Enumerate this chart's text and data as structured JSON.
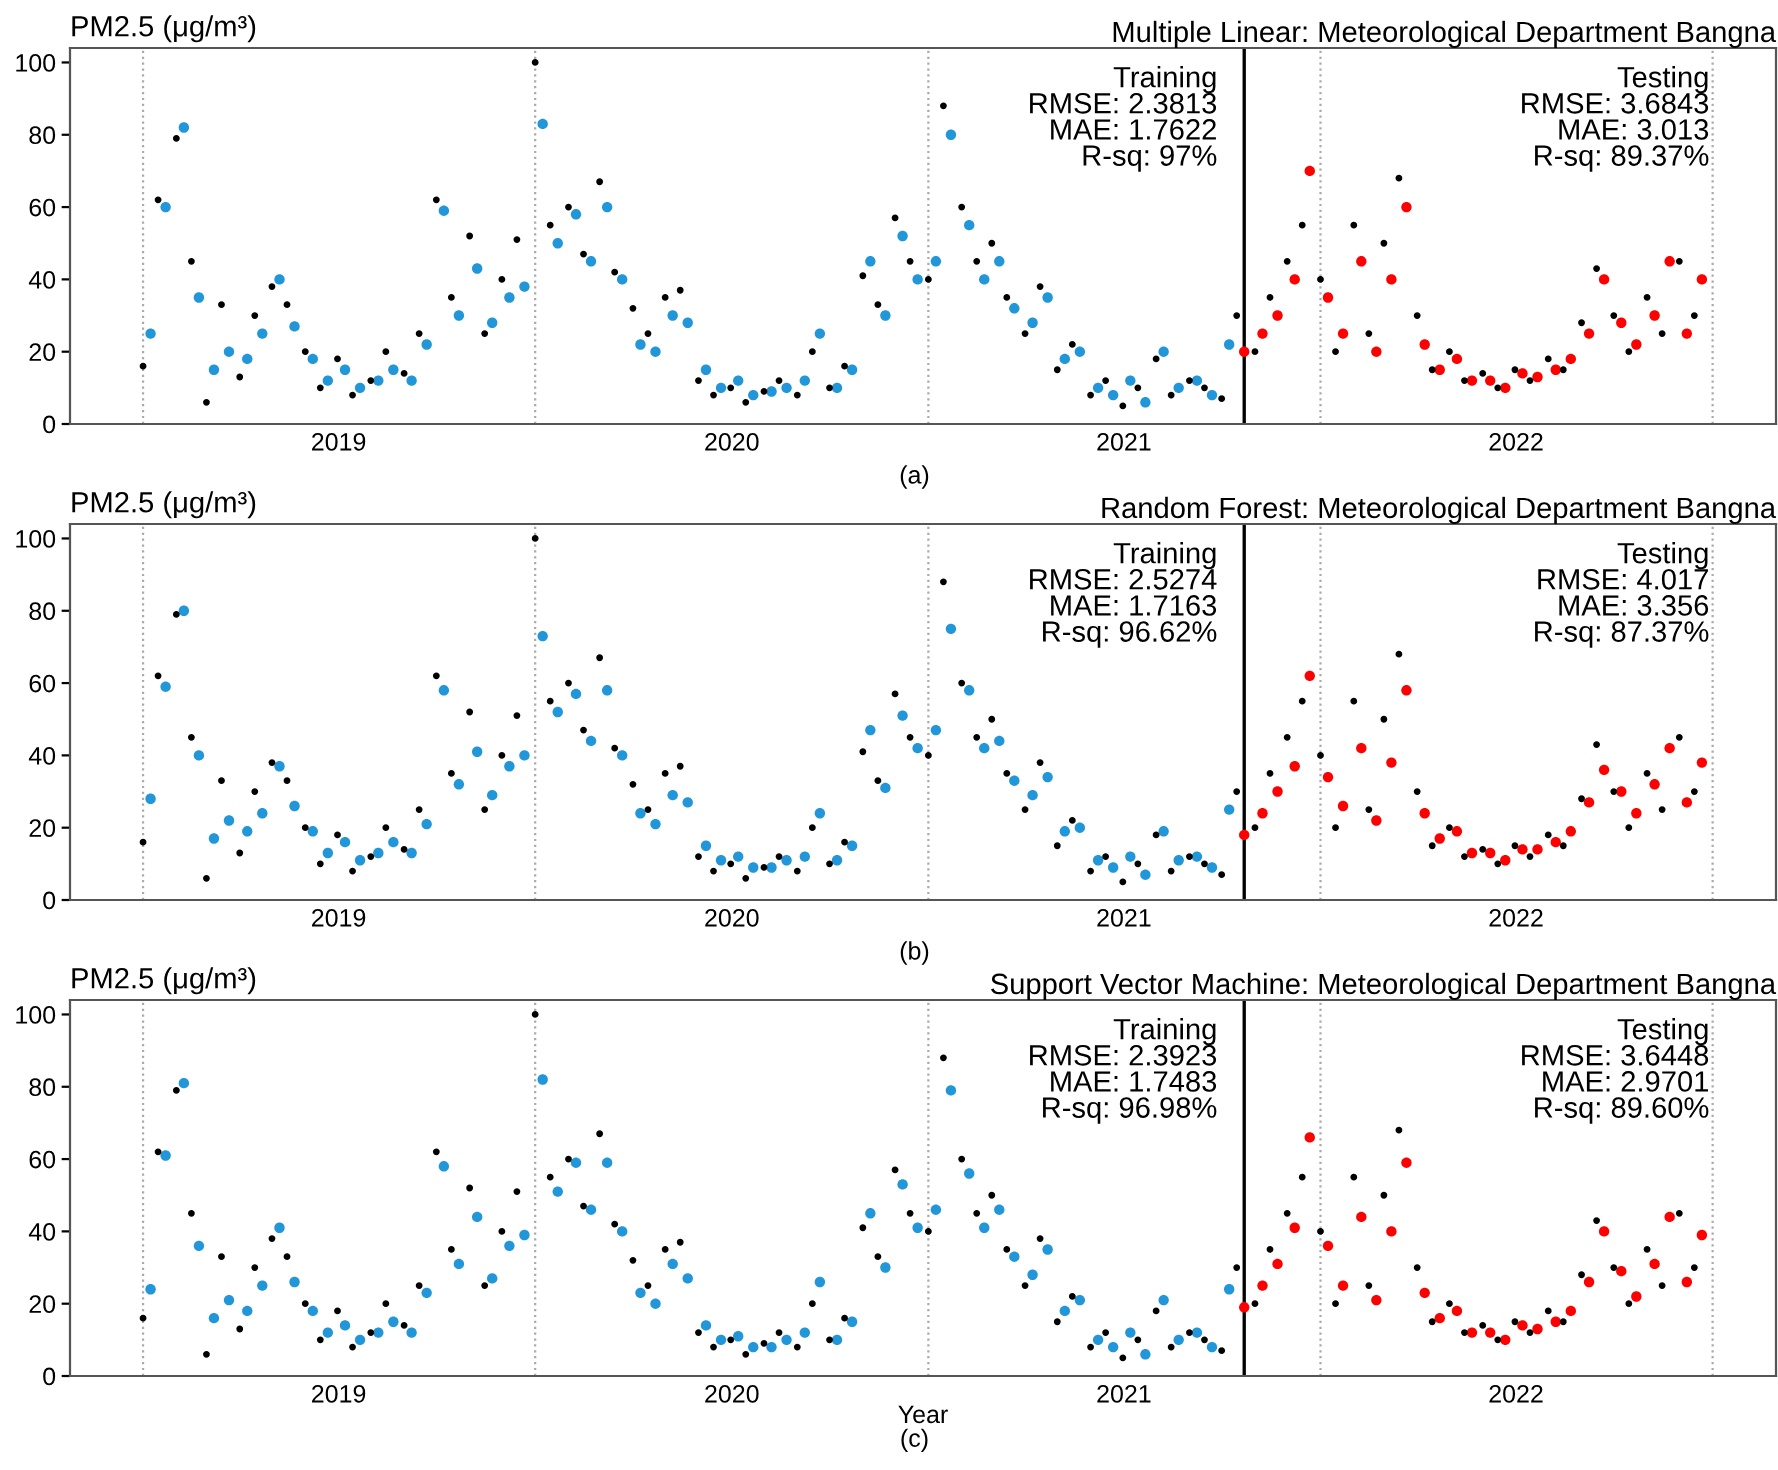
{
  "chart_data": [
    {
      "type": "scatter",
      "title": "Multiple Linear: Meteorological Department Bangna",
      "ylabel": "PM2.5 (μg/m³)",
      "marker": "circle",
      "xlim": [
        "2018-10-25",
        "2023-03-01"
      ],
      "ylim": [
        0,
        104
      ],
      "yticks": [
        0,
        20,
        40,
        60,
        80,
        100
      ],
      "xticks": [
        {
          "value": "2019-07-02",
          "label": "2019"
        },
        {
          "value": "2020-07-02",
          "label": "2020"
        },
        {
          "value": "2021-07-02",
          "label": "2021"
        },
        {
          "value": "2022-07-02",
          "label": "2022"
        }
      ],
      "ref_lines": [
        {
          "axis": "x",
          "value": "2019-01-01",
          "color": "#aaaaaa",
          "line_style": "dotted"
        },
        {
          "axis": "x",
          "value": "2020-01-01",
          "color": "#aaaaaa",
          "line_style": "dotted"
        },
        {
          "axis": "x",
          "value": "2021-01-01",
          "color": "#aaaaaa",
          "line_style": "dotted"
        },
        {
          "axis": "x",
          "value": "2022-01-01",
          "color": "#aaaaaa",
          "line_style": "dotted"
        },
        {
          "axis": "x",
          "value": "2023-01-01",
          "color": "#aaaaaa",
          "line_style": "dotted"
        },
        {
          "axis": "x",
          "value": "2021-10-22",
          "color": "#000000",
          "line_style": "solid"
        }
      ],
      "annotations": [
        "Training\nRMSE: 2.3813\nMAE: 1.7622\nR-sq: 97%",
        "Testing\nRMSE: 3.6843\nMAE: 3.013\nR-sq: 89.37%",
        "(a)"
      ],
      "series": [
        {
          "color": "#2196d8",
          "x": [
            "2019-01-08",
            "2019-01-22",
            "2019-02-08",
            "2019-02-22",
            "2019-03-08",
            "2019-03-22",
            "2019-04-08",
            "2019-04-22",
            "2019-05-08",
            "2019-05-22",
            "2019-06-08",
            "2019-06-22",
            "2019-07-08",
            "2019-07-22",
            "2019-08-08",
            "2019-08-22",
            "2019-09-08",
            "2019-09-22",
            "2019-10-08",
            "2019-10-22",
            "2019-11-08",
            "2019-11-22",
            "2019-12-08",
            "2019-12-22",
            "2020-01-08",
            "2020-01-22",
            "2020-02-08",
            "2020-02-22",
            "2020-03-08",
            "2020-03-22",
            "2020-04-08",
            "2020-04-22",
            "2020-05-08",
            "2020-05-22",
            "2020-06-08",
            "2020-06-22",
            "2020-07-08",
            "2020-07-22",
            "2020-08-08",
            "2020-08-22",
            "2020-09-08",
            "2020-09-22",
            "2020-10-08",
            "2020-10-22",
            "2020-11-08",
            "2020-11-22",
            "2020-12-08",
            "2020-12-22",
            "2021-01-08",
            "2021-01-22",
            "2021-02-08",
            "2021-02-22",
            "2021-03-08",
            "2021-03-22",
            "2021-04-08",
            "2021-04-22",
            "2021-05-08",
            "2021-05-22",
            "2021-06-08",
            "2021-06-22",
            "2021-07-08",
            "2021-07-22",
            "2021-08-08",
            "2021-08-22",
            "2021-09-08",
            "2021-09-22",
            "2021-10-08"
          ],
          "values": [
            25,
            60,
            82,
            35,
            15,
            20,
            18,
            25,
            40,
            27,
            18,
            12,
            15,
            10,
            12,
            15,
            12,
            22,
            59,
            30,
            43,
            28,
            35,
            38,
            83,
            50,
            58,
            45,
            60,
            40,
            22,
            20,
            30,
            28,
            15,
            10,
            12,
            8,
            9,
            10,
            12,
            25,
            10,
            15,
            45,
            30,
            52,
            40,
            45,
            80,
            55,
            40,
            45,
            32,
            28,
            35,
            18,
            20,
            10,
            8,
            12,
            6,
            20,
            10,
            12,
            8,
            22
          ]
        },
        {
          "color": "#ff0000",
          "x": [
            "2021-10-22",
            "2021-11-08",
            "2021-11-22",
            "2021-12-08",
            "2021-12-22",
            "2022-01-08",
            "2022-01-22",
            "2022-02-08",
            "2022-02-22",
            "2022-03-08",
            "2022-03-22",
            "2022-04-08",
            "2022-04-22",
            "2022-05-08",
            "2022-05-22",
            "2022-06-08",
            "2022-06-22",
            "2022-07-08",
            "2022-07-22",
            "2022-08-08",
            "2022-08-22",
            "2022-09-08",
            "2022-09-22",
            "2022-10-08",
            "2022-10-22",
            "2022-11-08",
            "2022-11-22",
            "2022-12-08",
            "2022-12-22"
          ],
          "values": [
            20,
            25,
            30,
            40,
            70,
            35,
            25,
            45,
            20,
            40,
            60,
            22,
            15,
            18,
            12,
            12,
            10,
            14,
            13,
            15,
            18,
            25,
            40,
            28,
            22,
            30,
            45,
            25,
            40
          ]
        },
        {
          "color": "#000000",
          "x": [
            "2019-01-01",
            "2019-01-15",
            "2019-02-01",
            "2019-02-15",
            "2019-03-01",
            "2019-03-15",
            "2019-04-01",
            "2019-04-15",
            "2019-05-01",
            "2019-05-15",
            "2019-06-01",
            "2019-06-15",
            "2019-07-01",
            "2019-07-15",
            "2019-08-01",
            "2019-08-15",
            "2019-09-01",
            "2019-09-15",
            "2019-10-01",
            "2019-10-15",
            "2019-11-01",
            "2019-11-15",
            "2019-12-01",
            "2019-12-15",
            "2020-01-01",
            "2020-01-15",
            "2020-02-01",
            "2020-02-15",
            "2020-03-01",
            "2020-03-15",
            "2020-04-01",
            "2020-04-15",
            "2020-05-01",
            "2020-05-15",
            "2020-06-01",
            "2020-06-15",
            "2020-07-01",
            "2020-07-15",
            "2020-08-01",
            "2020-08-15",
            "2020-09-01",
            "2020-09-15",
            "2020-10-01",
            "2020-10-15",
            "2020-11-01",
            "2020-11-15",
            "2020-12-01",
            "2020-12-15",
            "2021-01-01",
            "2021-01-15",
            "2021-02-01",
            "2021-02-15",
            "2021-03-01",
            "2021-03-15",
            "2021-04-01",
            "2021-04-15",
            "2021-05-01",
            "2021-05-15",
            "2021-06-01",
            "2021-06-15",
            "2021-07-01",
            "2021-07-15",
            "2021-08-01",
            "2021-08-15",
            "2021-09-01",
            "2021-09-15",
            "2021-10-01",
            "2021-10-15",
            "2021-11-01",
            "2021-11-15",
            "2021-12-01",
            "2021-12-15",
            "2022-01-01",
            "2022-01-15",
            "2022-02-01",
            "2022-02-15",
            "2022-03-01",
            "2022-03-15",
            "2022-04-01",
            "2022-04-15",
            "2022-05-01",
            "2022-05-15",
            "2022-06-01",
            "2022-06-15",
            "2022-07-01",
            "2022-07-15",
            "2022-08-01",
            "2022-08-15",
            "2022-09-01",
            "2022-09-15",
            "2022-10-01",
            "2022-10-15",
            "2022-11-01",
            "2022-11-15",
            "2022-12-01",
            "2022-12-15"
          ],
          "values": [
            16,
            62,
            79,
            45,
            6,
            33,
            13,
            30,
            38,
            33,
            20,
            10,
            18,
            8,
            12,
            20,
            14,
            25,
            62,
            35,
            52,
            25,
            40,
            51,
            100,
            55,
            60,
            47,
            67,
            42,
            32,
            25,
            35,
            37,
            12,
            8,
            10,
            6,
            9,
            12,
            8,
            20,
            10,
            16,
            41,
            33,
            57,
            45,
            40,
            88,
            60,
            45,
            50,
            35,
            25,
            38,
            15,
            22,
            8,
            12,
            5,
            10,
            18,
            8,
            12,
            10,
            7,
            30,
            20,
            35,
            45,
            55,
            40,
            20,
            55,
            25,
            50,
            68,
            30,
            15,
            20,
            12,
            14,
            10,
            15,
            12,
            18,
            15,
            28,
            43,
            30,
            20,
            35,
            25,
            45,
            30
          ]
        }
      ]
    },
    {
      "type": "scatter",
      "title": "Random Forest: Meteorological Department Bangna",
      "ylabel": "PM2.5 (μg/m³)",
      "marker": "circle",
      "xlim": [
        "2018-10-25",
        "2023-03-01"
      ],
      "ylim": [
        0,
        104
      ],
      "yticks": [
        0,
        20,
        40,
        60,
        80,
        100
      ],
      "xticks": [
        {
          "value": "2019-07-02",
          "label": "2019"
        },
        {
          "value": "2020-07-02",
          "label": "2020"
        },
        {
          "value": "2021-07-02",
          "label": "2021"
        },
        {
          "value": "2022-07-02",
          "label": "2022"
        }
      ],
      "ref_lines": [
        {
          "axis": "x",
          "value": "2019-01-01",
          "color": "#aaaaaa",
          "line_style": "dotted"
        },
        {
          "axis": "x",
          "value": "2020-01-01",
          "color": "#aaaaaa",
          "line_style": "dotted"
        },
        {
          "axis": "x",
          "value": "2021-01-01",
          "color": "#aaaaaa",
          "line_style": "dotted"
        },
        {
          "axis": "x",
          "value": "2022-01-01",
          "color": "#aaaaaa",
          "line_style": "dotted"
        },
        {
          "axis": "x",
          "value": "2023-01-01",
          "color": "#aaaaaa",
          "line_style": "dotted"
        },
        {
          "axis": "x",
          "value": "2021-10-22",
          "color": "#000000",
          "line_style": "solid"
        }
      ],
      "annotations": [
        "Training\nRMSE: 2.5274\nMAE: 1.7163\nR-sq: 96.62%",
        "Testing\nRMSE: 4.017\nMAE: 3.356\nR-sq: 87.37%",
        "(b)"
      ],
      "series": [
        {
          "color": "#2196d8",
          "x": [
            "2019-01-08",
            "2019-01-22",
            "2019-02-08",
            "2019-02-22",
            "2019-03-08",
            "2019-03-22",
            "2019-04-08",
            "2019-04-22",
            "2019-05-08",
            "2019-05-22",
            "2019-06-08",
            "2019-06-22",
            "2019-07-08",
            "2019-07-22",
            "2019-08-08",
            "2019-08-22",
            "2019-09-08",
            "2019-09-22",
            "2019-10-08",
            "2019-10-22",
            "2019-11-08",
            "2019-11-22",
            "2019-12-08",
            "2019-12-22",
            "2020-01-08",
            "2020-01-22",
            "2020-02-08",
            "2020-02-22",
            "2020-03-08",
            "2020-03-22",
            "2020-04-08",
            "2020-04-22",
            "2020-05-08",
            "2020-05-22",
            "2020-06-08",
            "2020-06-22",
            "2020-07-08",
            "2020-07-22",
            "2020-08-08",
            "2020-08-22",
            "2020-09-08",
            "2020-09-22",
            "2020-10-08",
            "2020-10-22",
            "2020-11-08",
            "2020-11-22",
            "2020-12-08",
            "2020-12-22",
            "2021-01-08",
            "2021-01-22",
            "2021-02-08",
            "2021-02-22",
            "2021-03-08",
            "2021-03-22",
            "2021-04-08",
            "2021-04-22",
            "2021-05-08",
            "2021-05-22",
            "2021-06-08",
            "2021-06-22",
            "2021-07-08",
            "2021-07-22",
            "2021-08-08",
            "2021-08-22",
            "2021-09-08",
            "2021-09-22",
            "2021-10-08"
          ],
          "values": [
            28,
            59,
            80,
            40,
            17,
            22,
            19,
            24,
            37,
            26,
            19,
            13,
            16,
            11,
            13,
            16,
            13,
            21,
            58,
            32,
            41,
            29,
            37,
            40,
            73,
            52,
            57,
            44,
            58,
            40,
            24,
            21,
            29,
            27,
            15,
            11,
            12,
            9,
            9,
            11,
            12,
            24,
            11,
            15,
            47,
            31,
            51,
            42,
            47,
            75,
            58,
            42,
            44,
            33,
            29,
            34,
            19,
            20,
            11,
            9,
            12,
            7,
            19,
            11,
            12,
            9,
            25
          ]
        },
        {
          "color": "#ff0000",
          "x": [
            "2021-10-22",
            "2021-11-08",
            "2021-11-22",
            "2021-12-08",
            "2021-12-22",
            "2022-01-08",
            "2022-01-22",
            "2022-02-08",
            "2022-02-22",
            "2022-03-08",
            "2022-03-22",
            "2022-04-08",
            "2022-04-22",
            "2022-05-08",
            "2022-05-22",
            "2022-06-08",
            "2022-06-22",
            "2022-07-08",
            "2022-07-22",
            "2022-08-08",
            "2022-08-22",
            "2022-09-08",
            "2022-09-22",
            "2022-10-08",
            "2022-10-22",
            "2022-11-08",
            "2022-11-22",
            "2022-12-08",
            "2022-12-22"
          ],
          "values": [
            18,
            24,
            30,
            37,
            62,
            34,
            26,
            42,
            22,
            38,
            58,
            24,
            17,
            19,
            13,
            13,
            11,
            14,
            14,
            16,
            19,
            27,
            36,
            30,
            24,
            32,
            42,
            27,
            38
          ]
        },
        {
          "color": "#000000",
          "x": [
            "2019-01-01",
            "2019-01-15",
            "2019-02-01",
            "2019-02-15",
            "2019-03-01",
            "2019-03-15",
            "2019-04-01",
            "2019-04-15",
            "2019-05-01",
            "2019-05-15",
            "2019-06-01",
            "2019-06-15",
            "2019-07-01",
            "2019-07-15",
            "2019-08-01",
            "2019-08-15",
            "2019-09-01",
            "2019-09-15",
            "2019-10-01",
            "2019-10-15",
            "2019-11-01",
            "2019-11-15",
            "2019-12-01",
            "2019-12-15",
            "2020-01-01",
            "2020-01-15",
            "2020-02-01",
            "2020-02-15",
            "2020-03-01",
            "2020-03-15",
            "2020-04-01",
            "2020-04-15",
            "2020-05-01",
            "2020-05-15",
            "2020-06-01",
            "2020-06-15",
            "2020-07-01",
            "2020-07-15",
            "2020-08-01",
            "2020-08-15",
            "2020-09-01",
            "2020-09-15",
            "2020-10-01",
            "2020-10-15",
            "2020-11-01",
            "2020-11-15",
            "2020-12-01",
            "2020-12-15",
            "2021-01-01",
            "2021-01-15",
            "2021-02-01",
            "2021-02-15",
            "2021-03-01",
            "2021-03-15",
            "2021-04-01",
            "2021-04-15",
            "2021-05-01",
            "2021-05-15",
            "2021-06-01",
            "2021-06-15",
            "2021-07-01",
            "2021-07-15",
            "2021-08-01",
            "2021-08-15",
            "2021-09-01",
            "2021-09-15",
            "2021-10-01",
            "2021-10-15",
            "2021-11-01",
            "2021-11-15",
            "2021-12-01",
            "2021-12-15",
            "2022-01-01",
            "2022-01-15",
            "2022-02-01",
            "2022-02-15",
            "2022-03-01",
            "2022-03-15",
            "2022-04-01",
            "2022-04-15",
            "2022-05-01",
            "2022-05-15",
            "2022-06-01",
            "2022-06-15",
            "2022-07-01",
            "2022-07-15",
            "2022-08-01",
            "2022-08-15",
            "2022-09-01",
            "2022-09-15",
            "2022-10-01",
            "2022-10-15",
            "2022-11-01",
            "2022-11-15",
            "2022-12-01",
            "2022-12-15"
          ],
          "values": [
            16,
            62,
            79,
            45,
            6,
            33,
            13,
            30,
            38,
            33,
            20,
            10,
            18,
            8,
            12,
            20,
            14,
            25,
            62,
            35,
            52,
            25,
            40,
            51,
            100,
            55,
            60,
            47,
            67,
            42,
            32,
            25,
            35,
            37,
            12,
            8,
            10,
            6,
            9,
            12,
            8,
            20,
            10,
            16,
            41,
            33,
            57,
            45,
            40,
            88,
            60,
            45,
            50,
            35,
            25,
            38,
            15,
            22,
            8,
            12,
            5,
            10,
            18,
            8,
            12,
            10,
            7,
            30,
            20,
            35,
            45,
            55,
            40,
            20,
            55,
            25,
            50,
            68,
            30,
            15,
            20,
            12,
            14,
            10,
            15,
            12,
            18,
            15,
            28,
            43,
            30,
            20,
            35,
            25,
            45,
            30
          ]
        }
      ]
    },
    {
      "type": "scatter",
      "title": "Support Vector Machine: Meteorological Department Bangna",
      "ylabel": "PM2.5 (μg/m³)",
      "xlabel": "Year",
      "marker": "circle",
      "xlim": [
        "2018-10-25",
        "2023-03-01"
      ],
      "ylim": [
        0,
        104
      ],
      "yticks": [
        0,
        20,
        40,
        60,
        80,
        100
      ],
      "xticks": [
        {
          "value": "2019-07-02",
          "label": "2019"
        },
        {
          "value": "2020-07-02",
          "label": "2020"
        },
        {
          "value": "2021-07-02",
          "label": "2021"
        },
        {
          "value": "2022-07-02",
          "label": "2022"
        }
      ],
      "ref_lines": [
        {
          "axis": "x",
          "value": "2019-01-01",
          "color": "#aaaaaa",
          "line_style": "dotted"
        },
        {
          "axis": "x",
          "value": "2020-01-01",
          "color": "#aaaaaa",
          "line_style": "dotted"
        },
        {
          "axis": "x",
          "value": "2021-01-01",
          "color": "#aaaaaa",
          "line_style": "dotted"
        },
        {
          "axis": "x",
          "value": "2022-01-01",
          "color": "#aaaaaa",
          "line_style": "dotted"
        },
        {
          "axis": "x",
          "value": "2023-01-01",
          "color": "#aaaaaa",
          "line_style": "dotted"
        },
        {
          "axis": "x",
          "value": "2021-10-22",
          "color": "#000000",
          "line_style": "solid"
        }
      ],
      "annotations": [
        "Training\nRMSE: 2.3923\nMAE: 1.7483\nR-sq: 96.98%",
        "Testing\nRMSE: 3.6448\nMAE: 2.9701\nR-sq: 89.60%",
        "(c)"
      ],
      "series": [
        {
          "color": "#2196d8",
          "x": [
            "2019-01-08",
            "2019-01-22",
            "2019-02-08",
            "2019-02-22",
            "2019-03-08",
            "2019-03-22",
            "2019-04-08",
            "2019-04-22",
            "2019-05-08",
            "2019-05-22",
            "2019-06-08",
            "2019-06-22",
            "2019-07-08",
            "2019-07-22",
            "2019-08-08",
            "2019-08-22",
            "2019-09-08",
            "2019-09-22",
            "2019-10-08",
            "2019-10-22",
            "2019-11-08",
            "2019-11-22",
            "2019-12-08",
            "2019-12-22",
            "2020-01-08",
            "2020-01-22",
            "2020-02-08",
            "2020-02-22",
            "2020-03-08",
            "2020-03-22",
            "2020-04-08",
            "2020-04-22",
            "2020-05-08",
            "2020-05-22",
            "2020-06-08",
            "2020-06-22",
            "2020-07-08",
            "2020-07-22",
            "2020-08-08",
            "2020-08-22",
            "2020-09-08",
            "2020-09-22",
            "2020-10-08",
            "2020-10-22",
            "2020-11-08",
            "2020-11-22",
            "2020-12-08",
            "2020-12-22",
            "2021-01-08",
            "2021-01-22",
            "2021-02-08",
            "2021-02-22",
            "2021-03-08",
            "2021-03-22",
            "2021-04-08",
            "2021-04-22",
            "2021-05-08",
            "2021-05-22",
            "2021-06-08",
            "2021-06-22",
            "2021-07-08",
            "2021-07-22",
            "2021-08-08",
            "2021-08-22",
            "2021-09-08",
            "2021-09-22",
            "2021-10-08"
          ],
          "values": [
            24,
            61,
            81,
            36,
            16,
            21,
            18,
            25,
            41,
            26,
            18,
            12,
            14,
            10,
            12,
            15,
            12,
            23,
            58,
            31,
            44,
            27,
            36,
            39,
            82,
            51,
            59,
            46,
            59,
            40,
            23,
            20,
            31,
            27,
            14,
            10,
            11,
            8,
            8,
            10,
            12,
            26,
            10,
            15,
            45,
            30,
            53,
            41,
            46,
            79,
            56,
            41,
            46,
            33,
            28,
            35,
            18,
            21,
            10,
            8,
            12,
            6,
            21,
            10,
            12,
            8,
            24
          ]
        },
        {
          "color": "#ff0000",
          "x": [
            "2021-10-22",
            "2021-11-08",
            "2021-11-22",
            "2021-12-08",
            "2021-12-22",
            "2022-01-08",
            "2022-01-22",
            "2022-02-08",
            "2022-02-22",
            "2022-03-08",
            "2022-03-22",
            "2022-04-08",
            "2022-04-22",
            "2022-05-08",
            "2022-05-22",
            "2022-06-08",
            "2022-06-22",
            "2022-07-08",
            "2022-07-22",
            "2022-08-08",
            "2022-08-22",
            "2022-09-08",
            "2022-09-22",
            "2022-10-08",
            "2022-10-22",
            "2022-11-08",
            "2022-11-22",
            "2022-12-08",
            "2022-12-22"
          ],
          "values": [
            19,
            25,
            31,
            41,
            66,
            36,
            25,
            44,
            21,
            40,
            59,
            23,
            16,
            18,
            12,
            12,
            10,
            14,
            13,
            15,
            18,
            26,
            40,
            29,
            22,
            31,
            44,
            26,
            39
          ]
        },
        {
          "color": "#000000",
          "x": [
            "2019-01-01",
            "2019-01-15",
            "2019-02-01",
            "2019-02-15",
            "2019-03-01",
            "2019-03-15",
            "2019-04-01",
            "2019-04-15",
            "2019-05-01",
            "2019-05-15",
            "2019-06-01",
            "2019-06-15",
            "2019-07-01",
            "2019-07-15",
            "2019-08-01",
            "2019-08-15",
            "2019-09-01",
            "2019-09-15",
            "2019-10-01",
            "2019-10-15",
            "2019-11-01",
            "2019-11-15",
            "2019-12-01",
            "2019-12-15",
            "2020-01-01",
            "2020-01-15",
            "2020-02-01",
            "2020-02-15",
            "2020-03-01",
            "2020-03-15",
            "2020-04-01",
            "2020-04-15",
            "2020-05-01",
            "2020-05-15",
            "2020-06-01",
            "2020-06-15",
            "2020-07-01",
            "2020-07-15",
            "2020-08-01",
            "2020-08-15",
            "2020-09-01",
            "2020-09-15",
            "2020-10-01",
            "2020-10-15",
            "2020-11-01",
            "2020-11-15",
            "2020-12-01",
            "2020-12-15",
            "2021-01-01",
            "2021-01-15",
            "2021-02-01",
            "2021-02-15",
            "2021-03-01",
            "2021-03-15",
            "2021-04-01",
            "2021-04-15",
            "2021-05-01",
            "2021-05-15",
            "2021-06-01",
            "2021-06-15",
            "2021-07-01",
            "2021-07-15",
            "2021-08-01",
            "2021-08-15",
            "2021-09-01",
            "2021-09-15",
            "2021-10-01",
            "2021-10-15",
            "2021-11-01",
            "2021-11-15",
            "2021-12-01",
            "2021-12-15",
            "2022-01-01",
            "2022-01-15",
            "2022-02-01",
            "2022-02-15",
            "2022-03-01",
            "2022-03-15",
            "2022-04-01",
            "2022-04-15",
            "2022-05-01",
            "2022-05-15",
            "2022-06-01",
            "2022-06-15",
            "2022-07-01",
            "2022-07-15",
            "2022-08-01",
            "2022-08-15",
            "2022-09-01",
            "2022-09-15",
            "2022-10-01",
            "2022-10-15",
            "2022-11-01",
            "2022-11-15",
            "2022-12-01",
            "2022-12-15"
          ],
          "values": [
            16,
            62,
            79,
            45,
            6,
            33,
            13,
            30,
            38,
            33,
            20,
            10,
            18,
            8,
            12,
            20,
            14,
            25,
            62,
            35,
            52,
            25,
            40,
            51,
            100,
            55,
            60,
            47,
            67,
            42,
            32,
            25,
            35,
            37,
            12,
            8,
            10,
            6,
            9,
            12,
            8,
            20,
            10,
            16,
            41,
            33,
            57,
            45,
            40,
            88,
            60,
            45,
            50,
            35,
            25,
            38,
            15,
            22,
            8,
            12,
            5,
            10,
            18,
            8,
            12,
            10,
            7,
            30,
            20,
            35,
            45,
            55,
            40,
            20,
            55,
            25,
            50,
            68,
            30,
            15,
            20,
            12,
            14,
            10,
            15,
            12,
            18,
            15,
            28,
            43,
            30,
            20,
            35,
            25,
            45,
            30
          ]
        }
      ]
    }
  ]
}
